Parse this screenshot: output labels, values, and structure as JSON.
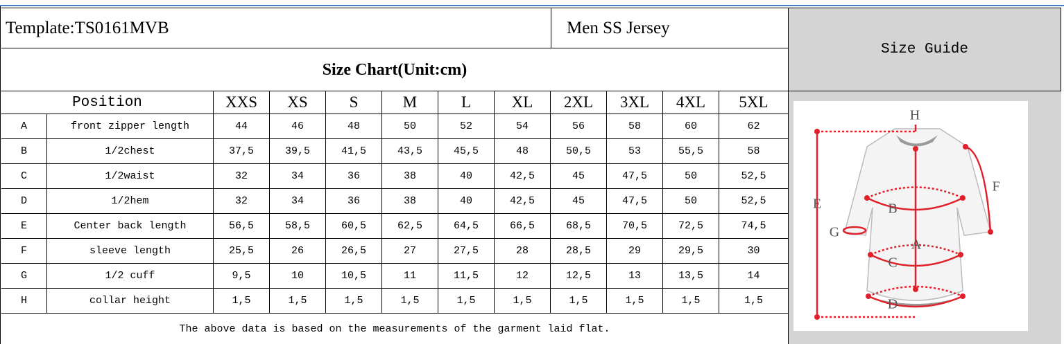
{
  "header": {
    "template": "Template:TS0161MVB",
    "product": "Men SS Jersey",
    "size_guide": "Size Guide"
  },
  "table": {
    "title": "Size Chart(Unit:cm)",
    "columns": [
      "Position",
      "XXS",
      "XS",
      "S",
      "M",
      "L",
      "XL",
      "2XL",
      "3XL",
      "4XL",
      "5XL"
    ],
    "rows": [
      [
        "A",
        "front zipper length",
        "44",
        "46",
        "48",
        "50",
        "52",
        "54",
        "56",
        "58",
        "60",
        "62"
      ],
      [
        "B",
        "1/2chest",
        "37,5",
        "39,5",
        "41,5",
        "43,5",
        "45,5",
        "48",
        "50,5",
        "53",
        "55,5",
        "58"
      ],
      [
        "C",
        "1/2waist",
        "32",
        "34",
        "36",
        "38",
        "40",
        "42,5",
        "45",
        "47,5",
        "50",
        "52,5"
      ],
      [
        "D",
        "1/2hem",
        "32",
        "34",
        "36",
        "38",
        "40",
        "42,5",
        "45",
        "47,5",
        "50",
        "52,5"
      ],
      [
        "E",
        "Center back length",
        "56,5",
        "58,5",
        "60,5",
        "62,5",
        "64,5",
        "66,5",
        "68,5",
        "70,5",
        "72,5",
        "74,5"
      ],
      [
        "F",
        "sleeve length",
        "25,5",
        "26",
        "26,5",
        "27",
        "27,5",
        "28",
        "28,5",
        "29",
        "29,5",
        "30"
      ],
      [
        "G",
        "1/2 cuff",
        "9,5",
        "10",
        "10,5",
        "11",
        "11,5",
        "12",
        "12,5",
        "13",
        "13,5",
        "14"
      ],
      [
        "H",
        "collar height",
        "1,5",
        "1,5",
        "1,5",
        "1,5",
        "1,5",
        "1,5",
        "1,5",
        "1,5",
        "1,5",
        "1,5"
      ]
    ],
    "note": "The above data is based on the measurements of the garment laid flat."
  },
  "diagram": {
    "labels": [
      "H",
      "F",
      "E",
      "B",
      "G",
      "A",
      "C",
      "D"
    ]
  }
}
